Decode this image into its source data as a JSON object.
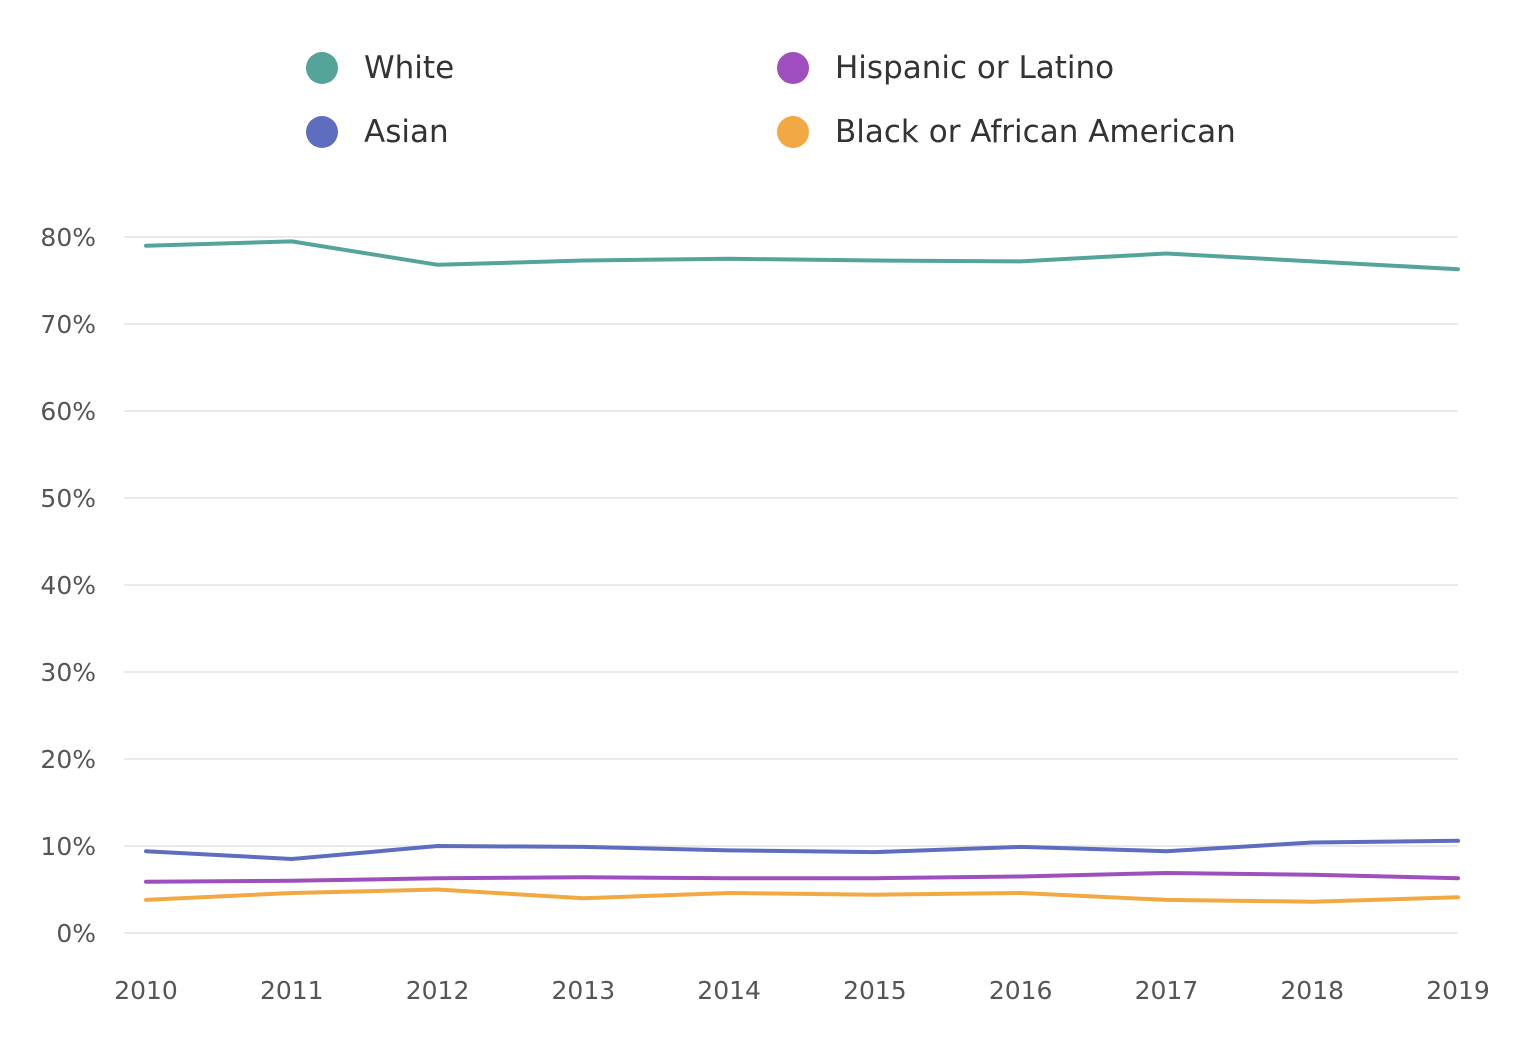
{
  "chart_data": {
    "type": "line",
    "title": "",
    "xlabel": "",
    "ylabel": "",
    "categories": [
      "2010",
      "2011",
      "2012",
      "2013",
      "2014",
      "2015",
      "2016",
      "2017",
      "2018",
      "2019"
    ],
    "y_ticks": [
      0,
      10,
      20,
      30,
      40,
      50,
      60,
      70,
      80
    ],
    "y_tick_labels": [
      "0%",
      "10%",
      "20%",
      "30%",
      "40%",
      "50%",
      "60%",
      "70%",
      "80%"
    ],
    "ylim": [
      0,
      80
    ],
    "grid": true,
    "legend_position": "top",
    "series": [
      {
        "name": "White",
        "color": "#55a49a",
        "values": [
          79.0,
          79.5,
          76.8,
          77.3,
          77.5,
          77.3,
          77.2,
          78.1,
          77.2,
          76.3
        ]
      },
      {
        "name": "Asian",
        "color": "#5f6dbf",
        "values": [
          9.4,
          8.5,
          10.0,
          9.9,
          9.5,
          9.3,
          9.9,
          9.4,
          10.4,
          10.6
        ]
      },
      {
        "name": "Hispanic or Latino",
        "color": "#9f4fbd",
        "values": [
          5.9,
          6.0,
          6.3,
          6.4,
          6.3,
          6.3,
          6.5,
          6.9,
          6.7,
          6.3
        ]
      },
      {
        "name": "Black or African American",
        "color": "#f2a944",
        "values": [
          3.8,
          4.6,
          5.0,
          4.0,
          4.6,
          4.4,
          4.6,
          3.8,
          3.6,
          4.1
        ]
      }
    ]
  }
}
